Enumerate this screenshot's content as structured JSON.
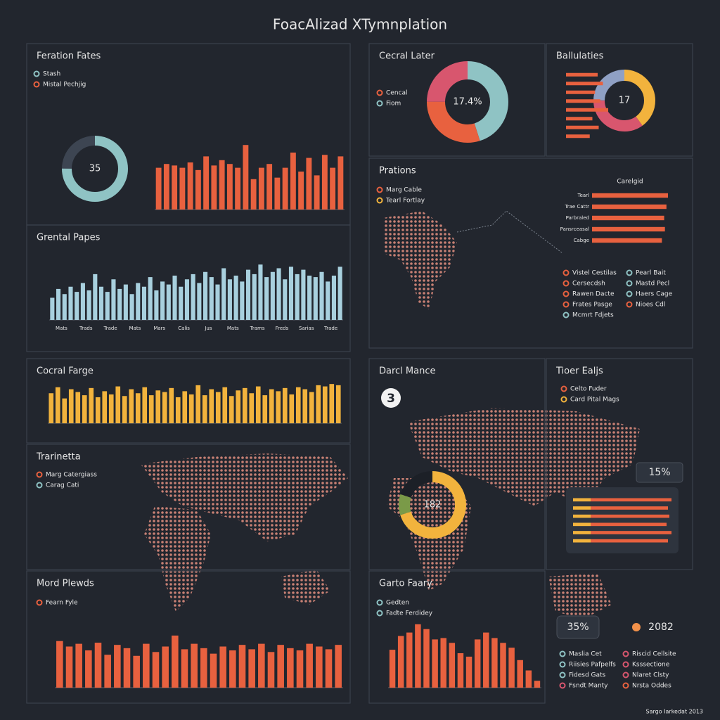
{
  "header": {
    "title": "FoacAlizad XTymnplation",
    "footer": "Sargo Iarkedat 2013"
  },
  "panels": [
    {
      "title": "Feration Fates",
      "legend": [
        {
          "label": "Stash",
          "color": "#8fc3c4"
        },
        {
          "label": "Mistal Pechjig",
          "color": "#e8613f"
        }
      ],
      "donut": {
        "label": "35",
        "segments": [
          75,
          25
        ],
        "colors": [
          "#8fc3c4",
          "#3d4552"
        ]
      },
      "bars": {
        "values": [
          55,
          60,
          58,
          55,
          62,
          52,
          70,
          58,
          65,
          60,
          55,
          85,
          40,
          55,
          60,
          42,
          55,
          75,
          50,
          68,
          45,
          72,
          55,
          70
        ],
        "color": "#e8613f",
        "ylim": [
          0,
          100
        ]
      }
    },
    {
      "title": "Grental Papes",
      "bars": {
        "values": [
          30,
          42,
          35,
          45,
          38,
          50,
          40,
          62,
          45,
          38,
          55,
          42,
          48,
          35,
          50,
          45,
          58,
          40,
          52,
          48,
          60,
          45,
          55,
          62,
          50,
          65,
          58,
          48,
          70,
          55,
          60,
          52,
          68,
          62,
          75,
          58,
          65,
          70,
          55,
          72,
          62,
          68,
          60,
          58,
          65,
          52,
          60,
          72
        ],
        "color": "#a8d0de",
        "ylim": [
          0,
          100
        ]
      },
      "xlabels": [
        "Mats",
        "Trads",
        "Trade",
        "Mats",
        "Mars",
        "Calis",
        "Jus",
        "Mats",
        "Trams",
        "Freds",
        "Sarias",
        "Trade"
      ]
    },
    {
      "title": "Cecral Later",
      "legend": [
        {
          "label": "Cencal",
          "color": "#e8613f"
        },
        {
          "label": "Fiom",
          "color": "#8fc3c4"
        }
      ],
      "donut": {
        "label": "17.4%",
        "segments": [
          45,
          30,
          25
        ],
        "colors": [
          "#8fc3c4",
          "#e8613f",
          "#d8566e"
        ]
      }
    },
    {
      "title": "Ballulaties",
      "donut": {
        "label": "17",
        "segments": [
          40,
          35,
          25
        ],
        "colors": [
          "#f2b33d",
          "#d8566e",
          "#8fa0c4"
        ]
      },
      "hbars": {
        "values": [
          60,
          70,
          55,
          65,
          80,
          50,
          62,
          45
        ],
        "color": "#e8613f",
        "xlim": [
          0,
          100
        ]
      }
    },
    {
      "title": "Prations",
      "legend": [
        {
          "label": "Marg Cable",
          "color": "#e8613f"
        },
        {
          "label": "Tearl Fortlay",
          "color": "#f2b33d"
        }
      ],
      "hbars": {
        "title": "Carelgid",
        "categories": [
          "Tearl",
          "Trae Cattr",
          "Parbraled",
          "Pansrceasal",
          "Cabge"
        ],
        "values": [
          100,
          98,
          95,
          96,
          92
        ],
        "color": "#e8613f",
        "xlim": [
          0,
          100
        ]
      },
      "legend2": [
        {
          "label": "Vistel Cestilas",
          "color": "#e8613f"
        },
        {
          "label": "Pearl Bait",
          "color": "#8fc3c4"
        },
        {
          "label": "Cersecdsh",
          "color": "#e8613f"
        },
        {
          "label": "Mastd Pecl",
          "color": "#8fc3c4"
        },
        {
          "label": "Rawen Dacte",
          "color": "#e8613f"
        },
        {
          "label": "Haers Cage",
          "color": "#8fc3c4"
        },
        {
          "label": "Frates Pasge",
          "color": "#e8613f"
        },
        {
          "label": "Nioes Cdl",
          "color": "#e8613f"
        },
        {
          "label": "Mcmrt Fdjets",
          "color": "#8fc3c4"
        }
      ]
    },
    {
      "title": "Cocral Farge",
      "bars": {
        "values": [
          75,
          90,
          62,
          85,
          78,
          70,
          88,
          65,
          80,
          72,
          92,
          68,
          85,
          75,
          90,
          70,
          82,
          78,
          88,
          65,
          80,
          72,
          95,
          70,
          85,
          78,
          90,
          68,
          82,
          88,
          75,
          92,
          70,
          85,
          80,
          88,
          72,
          90,
          85,
          78,
          95,
          92,
          98,
          95
        ],
        "color": "#f2b33d",
        "ylim": [
          0,
          100
        ]
      }
    },
    {
      "title": "Trarinetta",
      "legend": [
        {
          "label": "Marg Catergiass",
          "color": "#e8613f"
        },
        {
          "label": "Carag Cati",
          "color": "#8fc3c4"
        }
      ]
    },
    {
      "title": "Mord Plewds",
      "legend": [
        {
          "label": "Fearn Fyle",
          "color": "#e8613f"
        }
      ],
      "bars": {
        "values": [
          85,
          75,
          80,
          68,
          82,
          60,
          78,
          72,
          58,
          80,
          65,
          75,
          95,
          70,
          80,
          72,
          62,
          75,
          68,
          78,
          70,
          80,
          65,
          78,
          72,
          68,
          80,
          75,
          70,
          78
        ],
        "color": "#e8613f",
        "ylim": [
          0,
          100
        ]
      }
    },
    {
      "title": "Darcl Mance",
      "badge": "3",
      "donut": {
        "label": "182",
        "segments": [
          70,
          10,
          20
        ],
        "colors": [
          "#f2b33d",
          "#7a9a48",
          "#1c2027"
        ]
      }
    },
    {
      "title": "Tioer Ealjs",
      "legend": [
        {
          "label": "Celto Fuder",
          "color": "#e8613f"
        },
        {
          "label": "Card Pital Mags",
          "color": "#f2b33d"
        }
      ],
      "callout": "15%",
      "stack": {
        "xlim": [
          0,
          140
        ],
        "series": [
          {
            "color": "#f2b33d",
            "values": [
              25,
              25,
              25,
              25,
              25,
              25
            ]
          },
          {
            "color": "#e8613f",
            "values": [
              115,
              110,
              112,
              108,
              115,
              110
            ]
          }
        ]
      }
    },
    {
      "title": "Garto Faary",
      "legend": [
        {
          "label": "Gedten",
          "color": "#8fc3c4"
        },
        {
          "label": "Fadte Ferdidey",
          "color": "#8fc3c4"
        }
      ],
      "bars": {
        "values": [
          55,
          75,
          80,
          92,
          85,
          70,
          72,
          65,
          50,
          45,
          70,
          80,
          72,
          65,
          58,
          40,
          25,
          10
        ],
        "color": "#e8613f",
        "ylim": [
          0,
          100
        ]
      }
    },
    {
      "stat1": "35%",
      "stat2": "2082",
      "legend": [
        {
          "label": "Maslia Cet",
          "color": "#8fc3c4"
        },
        {
          "label": "Riscid Cellsite",
          "color": "#d8566e"
        },
        {
          "label": "Riisies Pafpelfs",
          "color": "#8fc3c4"
        },
        {
          "label": "Ksssectione",
          "color": "#d8566e"
        },
        {
          "label": "Fidesd Gats",
          "color": "#8fc3c4"
        },
        {
          "label": "Nlaret Clsty",
          "color": "#d8566e"
        },
        {
          "label": "Fsndt Manty",
          "color": "#d8566e"
        },
        {
          "label": "Nrsta Oddes",
          "color": "#e8613f"
        }
      ]
    }
  ]
}
